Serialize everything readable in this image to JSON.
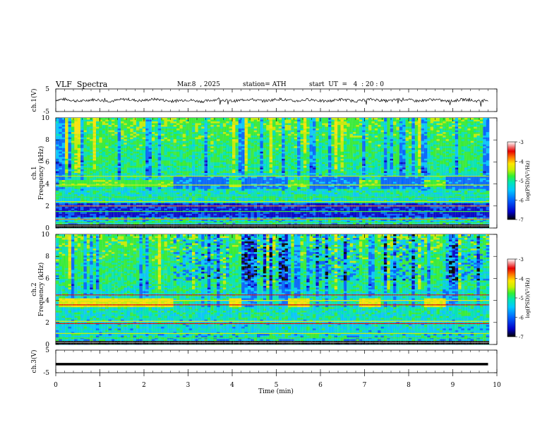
{
  "header": {
    "title": "VLF  Spectra",
    "date": "Mar.8  , 2025",
    "station": "station= ATH",
    "start": "start  UT  =   4  : 20 : 0"
  },
  "colors": {
    "waveform": "#000000",
    "colormap": [
      "#000000",
      "#0000c8",
      "#0064ff",
      "#00c8ff",
      "#00e6b4",
      "#32f032",
      "#c8f000",
      "#ffe600",
      "#ff7800",
      "#e60000",
      "#ffffff"
    ]
  },
  "chart_data": [
    {
      "type": "line",
      "panel": "ch1-waveform",
      "ylabel": "ch.1(V)",
      "yticks": [
        "5",
        "-5"
      ],
      "ylim": [
        -5,
        5
      ],
      "x": [
        0,
        1,
        2,
        3,
        4,
        5,
        6,
        7,
        8,
        9,
        9.8
      ],
      "y": [
        0.1,
        -0.1,
        0.2,
        -0.2,
        0.0,
        0.1,
        -0.1,
        0.0,
        0.1,
        -0.1,
        0.0
      ]
    },
    {
      "type": "heatmap",
      "panel": "ch1-spectrogram",
      "ylabel": "ch.1\nFrequency  (kHz)",
      "yticks": [
        "0",
        "2",
        "4",
        "6",
        "8",
        "10"
      ],
      "ylim": [
        0,
        10
      ],
      "xlim": [
        0,
        9.8
      ]
    },
    {
      "type": "heatmap",
      "panel": "ch2-spectrogram",
      "ylabel": "ch.2\nFrequency  (kHz)",
      "yticks": [
        "0",
        "2",
        "4",
        "6",
        "8",
        "10"
      ],
      "ylim": [
        0,
        10
      ],
      "xlim": [
        0,
        9.8
      ]
    },
    {
      "type": "line",
      "panel": "ch3-waveform",
      "ylabel": "ch.3(V)",
      "yticks": [
        "5",
        "-5"
      ],
      "ylim": [
        -5,
        5
      ],
      "x": [
        0,
        9.8
      ],
      "y": [
        -1.2,
        -1.2
      ]
    }
  ],
  "colorbar": {
    "label": "log(PSD)(V²/Hz)",
    "ticks": [
      "-3",
      "-4",
      "-5",
      "-6",
      "-7"
    ],
    "range": [
      -7,
      -3
    ]
  },
  "xaxis": {
    "label": "Time  (min)",
    "ticks": [
      "0",
      "1",
      "2",
      "3",
      "4",
      "5",
      "6",
      "7",
      "8",
      "9",
      "10"
    ],
    "range": [
      0,
      10
    ]
  }
}
